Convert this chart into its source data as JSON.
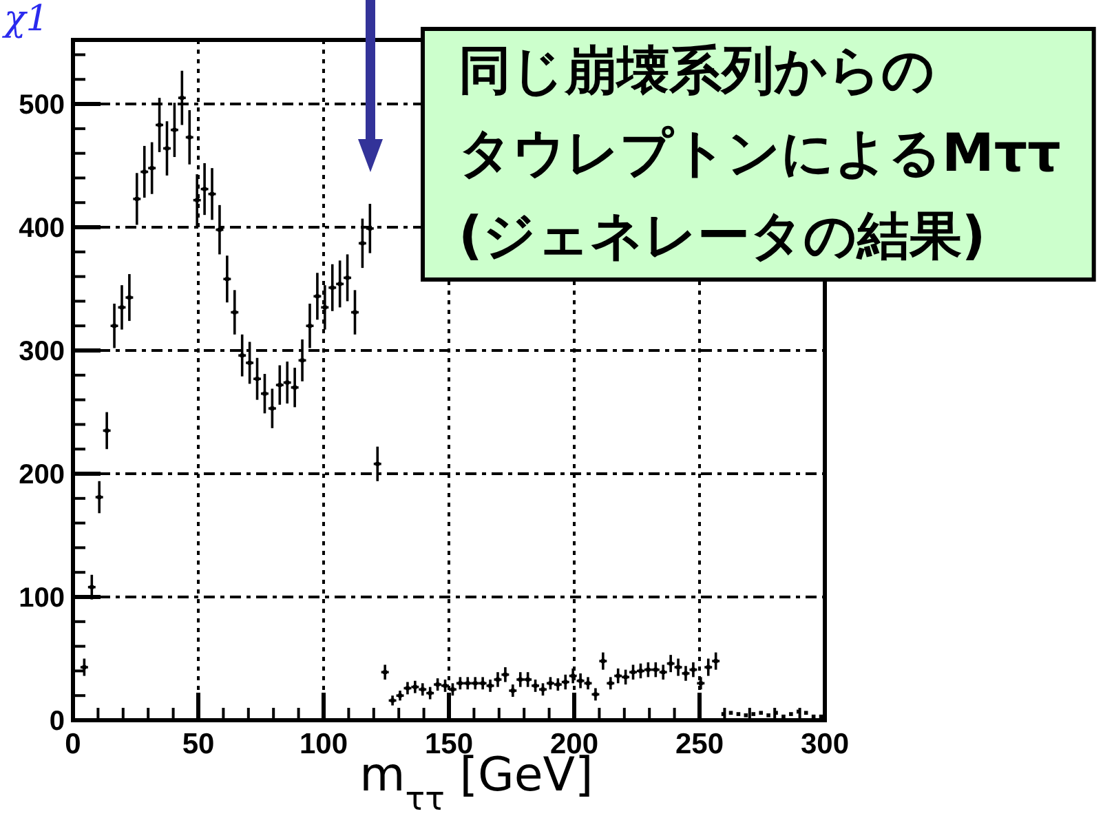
{
  "chart_data": {
    "type": "scatter",
    "xlabel": "m$_{ττ}$ [GeV]",
    "color": "#000000",
    "marker": "square",
    "grid": true,
    "xlim": [
      0,
      300
    ],
    "ylim": [
      0,
      552
    ],
    "xticks": [
      0,
      50,
      100,
      150,
      200,
      250,
      300
    ],
    "yticks": [
      0,
      100,
      200,
      300,
      400,
      500
    ],
    "x": [
      4.5,
      7.5,
      10.5,
      13.5,
      16.5,
      19.5,
      22.5,
      25.5,
      28.5,
      31.5,
      34.5,
      37.5,
      40.5,
      43.5,
      46.5,
      49.5,
      52.5,
      55.5,
      58.5,
      61.5,
      64.5,
      67.5,
      70.5,
      73.5,
      76.5,
      79.5,
      82.5,
      85.5,
      88.5,
      91.5,
      94.5,
      97.5,
      100.5,
      103.5,
      106.5,
      109.5,
      112.5,
      115.5,
      118.5,
      121.5,
      124.5,
      127.5,
      130.5,
      133.5,
      136.5,
      139.5,
      142.5,
      145.5,
      148.5,
      151.5,
      154.5,
      157.5,
      160.5,
      163.5,
      166.5,
      169.5,
      172.5,
      175.5,
      178.5,
      181.5,
      184.5,
      187.5,
      190.5,
      193.5,
      196.5,
      199.5,
      202.5,
      205.5,
      208.5,
      211.5,
      214.5,
      217.5,
      220.5,
      223.5,
      226.5,
      229.5,
      232.5,
      235.5,
      238.5,
      241.5,
      244.5,
      247.5,
      250.5,
      253.5,
      256.5,
      259.5,
      262.5,
      265.5,
      268.5,
      271.5,
      274.5,
      277.5,
      280.5,
      283.5,
      286.5,
      289.5,
      292.5,
      295.5,
      298.5
    ],
    "values": [
      43,
      108,
      181,
      235,
      320,
      335,
      343,
      423,
      445,
      448,
      483,
      464,
      479,
      505,
      473,
      422,
      431,
      427,
      398,
      358,
      331,
      296,
      290,
      277,
      265,
      253,
      272,
      274,
      270,
      292,
      320,
      344,
      335,
      351,
      354,
      359,
      331,
      387,
      399,
      208,
      39,
      16,
      20,
      26,
      27,
      25,
      22,
      29,
      28,
      25,
      30,
      30,
      30,
      30,
      28,
      33,
      37,
      24,
      33,
      33,
      28,
      25,
      30,
      29,
      31,
      36,
      32,
      30,
      21,
      48,
      30,
      36,
      35,
      39,
      40,
      41,
      41,
      39,
      46,
      43,
      38,
      41,
      30,
      43,
      48,
      5,
      6,
      5,
      4,
      5,
      6,
      4,
      6,
      3,
      5,
      7,
      6,
      3,
      3
    ],
    "errors": [
      7,
      10,
      13,
      15,
      18,
      18,
      19,
      21,
      21,
      21,
      22,
      22,
      22,
      22,
      22,
      21,
      21,
      21,
      20,
      19,
      18,
      17,
      17,
      17,
      16,
      16,
      16,
      17,
      16,
      17,
      18,
      19,
      18,
      19,
      19,
      19,
      18,
      20,
      20,
      14,
      6,
      4,
      4,
      5,
      5,
      5,
      5,
      5,
      5,
      5,
      5,
      5,
      5,
      5,
      5,
      6,
      6,
      5,
      6,
      6,
      5,
      5,
      5,
      5,
      6,
      6,
      6,
      5,
      5,
      7,
      5,
      6,
      6,
      6,
      6,
      6,
      6,
      6,
      7,
      7,
      6,
      6,
      5,
      7,
      7,
      null,
      null,
      null,
      null,
      null,
      null,
      null,
      null,
      null,
      null,
      null,
      null,
      null,
      null
    ],
    "xerrors": [
      1.5,
      1.5,
      1.5,
      1.5,
      1.5,
      1.5,
      1.5,
      1.5,
      1.5,
      1.5,
      1.5,
      1.5,
      1.5,
      1.5,
      1.5,
      1.5,
      1.5,
      1.5,
      1.5,
      1.5,
      1.5,
      1.5,
      1.5,
      1.5,
      1.5,
      1.5,
      1.5,
      1.5,
      1.5,
      1.5,
      1.5,
      1.5,
      1.5,
      1.5,
      1.5,
      1.5,
      1.5,
      1.5,
      1.5,
      1.5,
      1.5,
      1.5,
      1.5,
      1.5,
      1.5,
      1.5,
      1.5,
      1.5,
      1.5,
      1.5,
      1.5,
      1.5,
      1.5,
      1.5,
      1.5,
      1.5,
      1.5,
      1.5,
      1.5,
      1.5,
      1.5,
      1.5,
      1.5,
      1.5,
      1.5,
      1.5,
      1.5,
      1.5,
      1.5,
      1.5,
      1.5,
      1.5,
      1.5,
      1.5,
      1.5,
      1.5,
      1.5,
      1.5,
      1.5,
      1.5,
      1.5,
      1.5,
      1.5,
      1.5,
      1.5,
      null,
      null,
      null,
      null,
      null,
      null,
      null,
      null,
      null,
      null,
      null,
      null,
      null,
      null
    ],
    "annotations": [
      "χ1",
      "同じ崩壊系列からのタウレプトンによるMττ(ジェネレータの結果)"
    ]
  }
}
